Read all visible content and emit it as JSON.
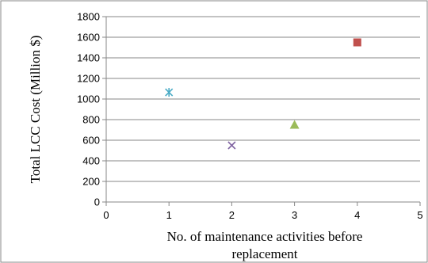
{
  "chart_data": {
    "type": "scatter",
    "title": "",
    "xlabel_lines": [
      "No. of maintenance activities before",
      "replacement"
    ],
    "ylabel": "Total LCC Cost (Million $)",
    "xlim": [
      0,
      5
    ],
    "ylim": [
      0,
      1800
    ],
    "x_ticks": [
      0,
      1,
      2,
      3,
      4,
      5
    ],
    "y_ticks": [
      0,
      200,
      400,
      600,
      800,
      1000,
      1200,
      1400,
      1600,
      1800
    ],
    "grid": "horizontal",
    "legend": "none",
    "series": [
      {
        "marker": "asterisk",
        "color": "#4bacc6",
        "points": [
          {
            "x": 1,
            "y": 1065
          }
        ]
      },
      {
        "marker": "x",
        "color": "#8064a2",
        "points": [
          {
            "x": 2,
            "y": 550
          }
        ]
      },
      {
        "marker": "triangle",
        "color": "#9bbb59",
        "points": [
          {
            "x": 3,
            "y": 750
          }
        ]
      },
      {
        "marker": "square",
        "color": "#c0504d",
        "points": [
          {
            "x": 4,
            "y": 1550
          }
        ]
      }
    ]
  }
}
